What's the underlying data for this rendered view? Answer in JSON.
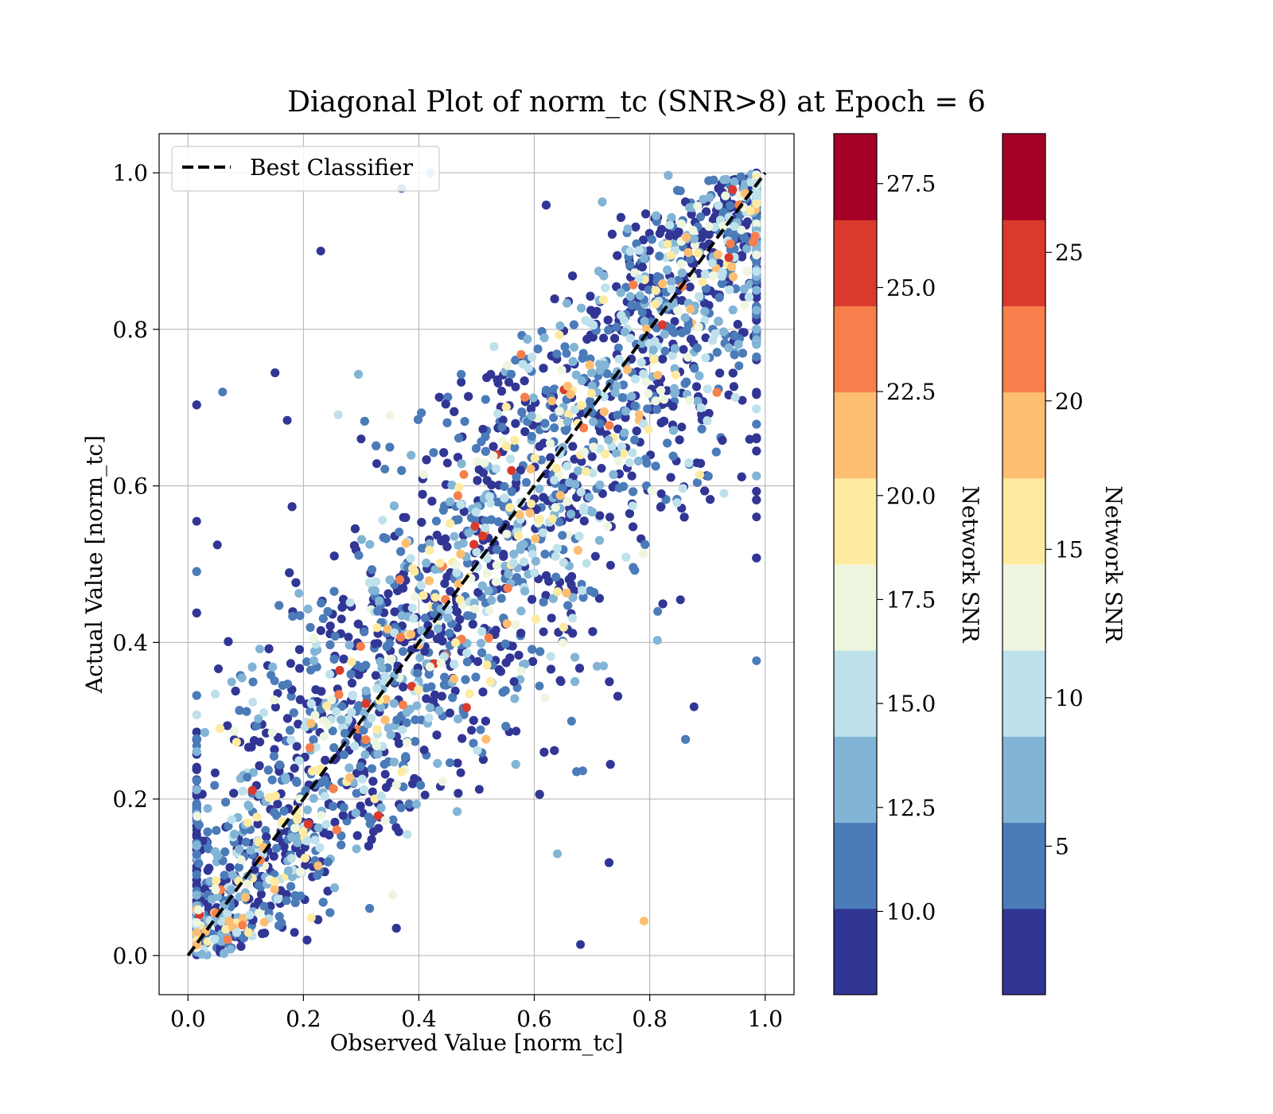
{
  "chart_data": {
    "type": "scatter",
    "title": "Diagonal Plot of norm_tc (SNR>8) at Epoch = 6",
    "xlabel": "Observed Value [norm_tc]",
    "ylabel": "Actual Value [norm_tc]",
    "xlim": [
      -0.05,
      1.05
    ],
    "ylim": [
      -0.05,
      1.05
    ],
    "xticks": [
      "0.0",
      "0.2",
      "0.4",
      "0.6",
      "0.8",
      "1.0"
    ],
    "yticks": [
      "0.0",
      "0.2",
      "0.4",
      "0.6",
      "0.8",
      "1.0"
    ],
    "grid": true,
    "legend": {
      "location": "upper-left",
      "entries": [
        {
          "label": "Best Classifier",
          "style": "dashed",
          "color": "#000000"
        }
      ]
    },
    "reference_line": {
      "label": "Best Classifier",
      "x": [
        0,
        1
      ],
      "y": [
        0,
        1
      ]
    },
    "scatter_note": "Several thousand points clustered along the diagonal, colored by Network SNR",
    "outliers": [
      {
        "x": 0.06,
        "y": 0.72,
        "snr": 11
      },
      {
        "x": 0.23,
        "y": 0.9,
        "snr": 8.5
      },
      {
        "x": 0.37,
        "y": 0.98,
        "snr": 11
      },
      {
        "x": 0.68,
        "y": 0.014,
        "snr": 8.5
      },
      {
        "x": 0.79,
        "y": 0.044,
        "snr": 21
      },
      {
        "x": 0.82,
        "y": 0.59,
        "snr": 8.5
      },
      {
        "x": 0.72,
        "y": 0.37,
        "snr": 13
      },
      {
        "x": 0.64,
        "y": 0.13,
        "snr": 13
      },
      {
        "x": 0.3,
        "y": 0.66,
        "snr": 8.5
      },
      {
        "x": 0.42,
        "y": 1.0,
        "snr": 13
      },
      {
        "x": 0.35,
        "y": 0.69,
        "snr": 18
      }
    ],
    "colorbars": [
      {
        "label": "Network SNR",
        "range": [
          8,
          28.7
        ],
        "ticks": [
          "10.0",
          "12.5",
          "15.0",
          "17.5",
          "20.0",
          "22.5",
          "25.0",
          "27.5"
        ],
        "tick_values": [
          10.0,
          12.5,
          15.0,
          17.5,
          20.0,
          22.5,
          25.0,
          27.5
        ]
      },
      {
        "label": "Network SNR",
        "range": [
          0,
          29
        ],
        "ticks": [
          "5",
          "10",
          "15",
          "20",
          "25"
        ],
        "tick_values": [
          5,
          10,
          15,
          20,
          25
        ]
      }
    ],
    "colormap": [
      "#313695",
      "#4575b4",
      "#74add1",
      "#abd9e9",
      "#e0f3f8",
      "#fee090",
      "#fdae61",
      "#f46d43",
      "#d73027",
      "#a50026"
    ],
    "colormap_discrete": [
      "#313695",
      "#4b7bb9",
      "#82b4d6",
      "#bfe1ec",
      "#eef6e0",
      "#feeba2",
      "#fdbe72",
      "#f67f4b",
      "#d93a2d",
      "#a50026"
    ]
  }
}
